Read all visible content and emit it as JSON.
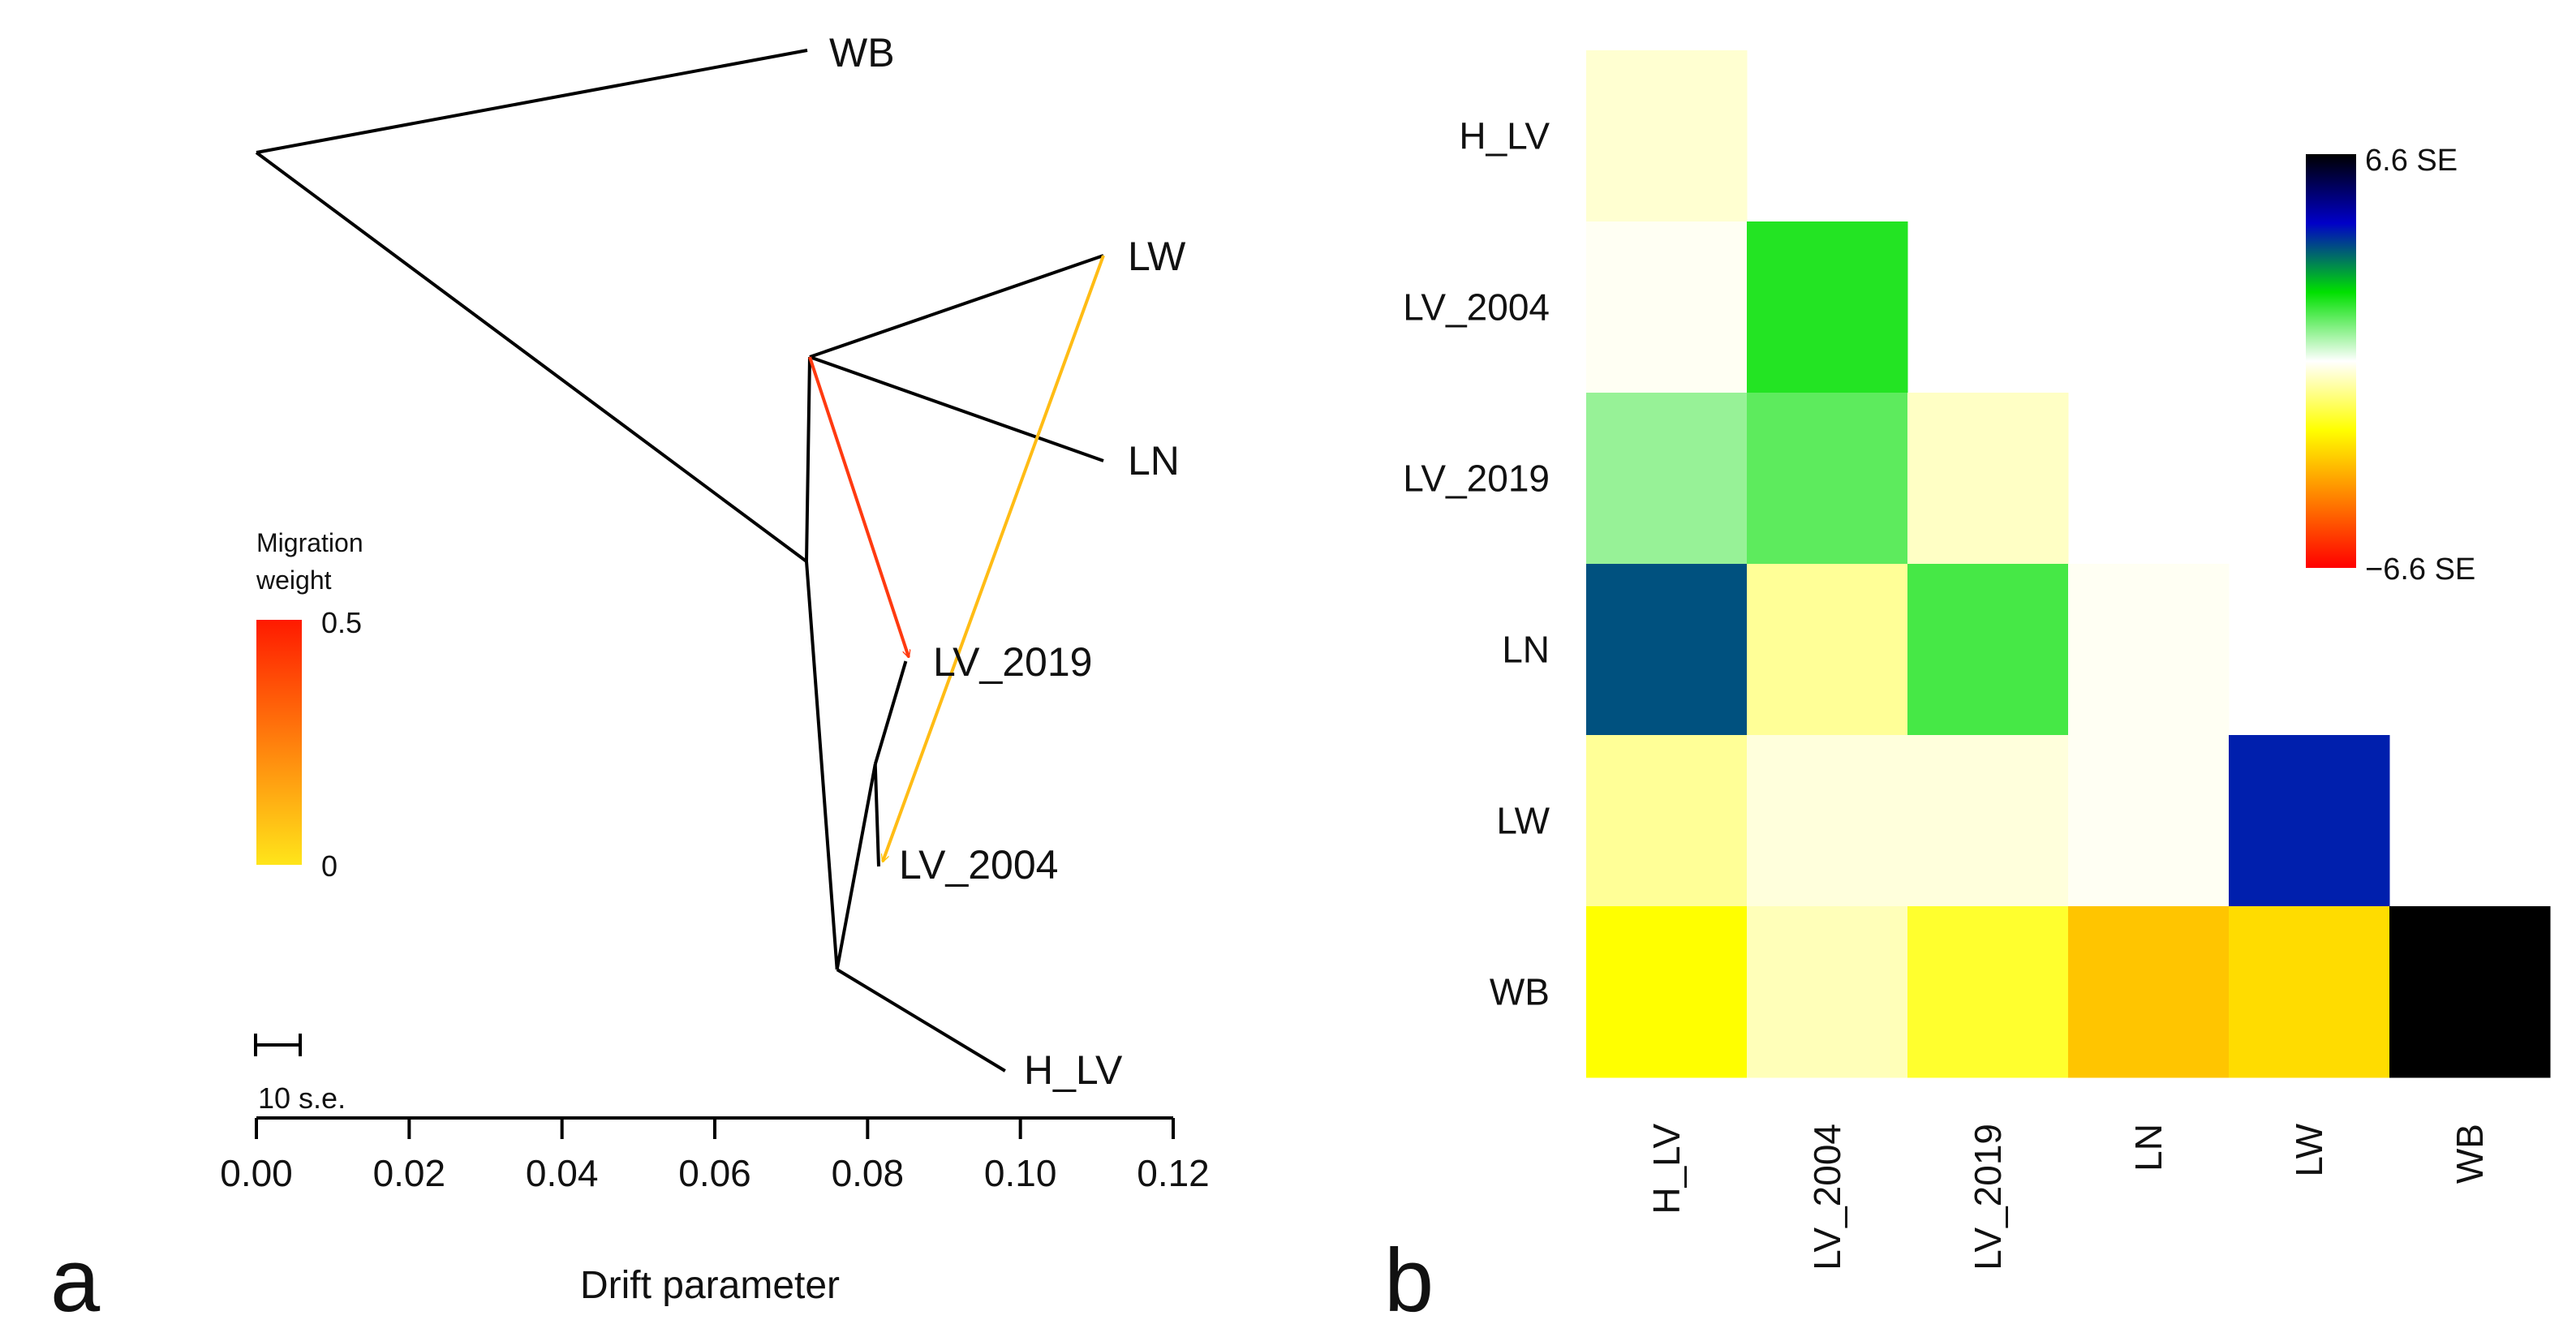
{
  "chart_data": [
    {
      "type": "tree",
      "panel_label": "a",
      "title": "",
      "xlabel": "Drift parameter",
      "xlim": [
        0.0,
        0.12
      ],
      "xticks": [
        "0.00",
        "0.02",
        "0.04",
        "0.06",
        "0.08",
        "0.10",
        "0.12"
      ],
      "scale_bar_label": "10 s.e.",
      "nodes": [
        {
          "id": "root",
          "x": 0.0
        },
        {
          "id": "n1",
          "x": 0.072
        },
        {
          "id": "n2",
          "x": 0.072
        },
        {
          "id": "n3",
          "x": 0.076
        },
        {
          "id": "n4",
          "x": 0.081
        },
        {
          "id": "WB",
          "x": 0.072,
          "label": "WB"
        },
        {
          "id": "LW",
          "x": 0.11,
          "label": "LW"
        },
        {
          "id": "LN",
          "x": 0.11,
          "label": "LN"
        },
        {
          "id": "LV_2019",
          "x": 0.085,
          "label": "LV_2019"
        },
        {
          "id": "LV_2004",
          "x": 0.082,
          "label": "LV_2004"
        },
        {
          "id": "H_LV",
          "x": 0.098,
          "label": "H_LV"
        }
      ],
      "edges": [
        [
          "root",
          "WB"
        ],
        [
          "root",
          "n1"
        ],
        [
          "n1",
          "n2"
        ],
        [
          "n2",
          "LW"
        ],
        [
          "n2",
          "LN"
        ],
        [
          "n1",
          "n3"
        ],
        [
          "n3",
          "H_LV"
        ],
        [
          "n3",
          "n4"
        ],
        [
          "n4",
          "LV_2019"
        ],
        [
          "n4",
          "LV_2004"
        ]
      ],
      "migrations": [
        {
          "from": "n2",
          "to": "LV_2019",
          "weight": 0.45
        },
        {
          "from": "LW",
          "to": "LV_2004",
          "weight": 0.1
        }
      ],
      "legend": {
        "title_line1": "Migration",
        "title_line2": "weight",
        "max_label": "0.5",
        "min_label": "0",
        "color_min": "#ffe51a",
        "color_max": "#ff1a00"
      }
    },
    {
      "type": "heatmap",
      "panel_label": "b",
      "row_labels": [
        "H_LV",
        "LV_2004",
        "LV_2019",
        "LN",
        "LW",
        "WB"
      ],
      "col_labels": [
        "H_LV",
        "LV_2004",
        "LV_2019",
        "LN",
        "LW",
        "WB"
      ],
      "values": [
        [
          -0.4,
          null,
          null,
          null,
          null,
          null
        ],
        [
          -0.1,
          1.9,
          null,
          null,
          null,
          null
        ],
        [
          0.9,
          1.4,
          -0.5,
          null,
          null,
          null
        ],
        [
          3.6,
          -0.9,
          1.6,
          -0.1,
          null,
          null
        ],
        [
          -0.9,
          -0.3,
          -0.3,
          -0.1,
          4.1,
          null
        ],
        [
          -2.2,
          -0.6,
          -1.8,
          -3.2,
          -2.8,
          6.6
        ]
      ],
      "colorbar": {
        "max_label": "6.6 SE",
        "min_label": "−6.6 SE",
        "vmin": -6.6,
        "vmax": 6.6,
        "colors": [
          "#ff0000",
          "#ff8000",
          "#ffff00",
          "#ffffff",
          "#00e000",
          "#0000c8",
          "#000000"
        ]
      }
    }
  ]
}
